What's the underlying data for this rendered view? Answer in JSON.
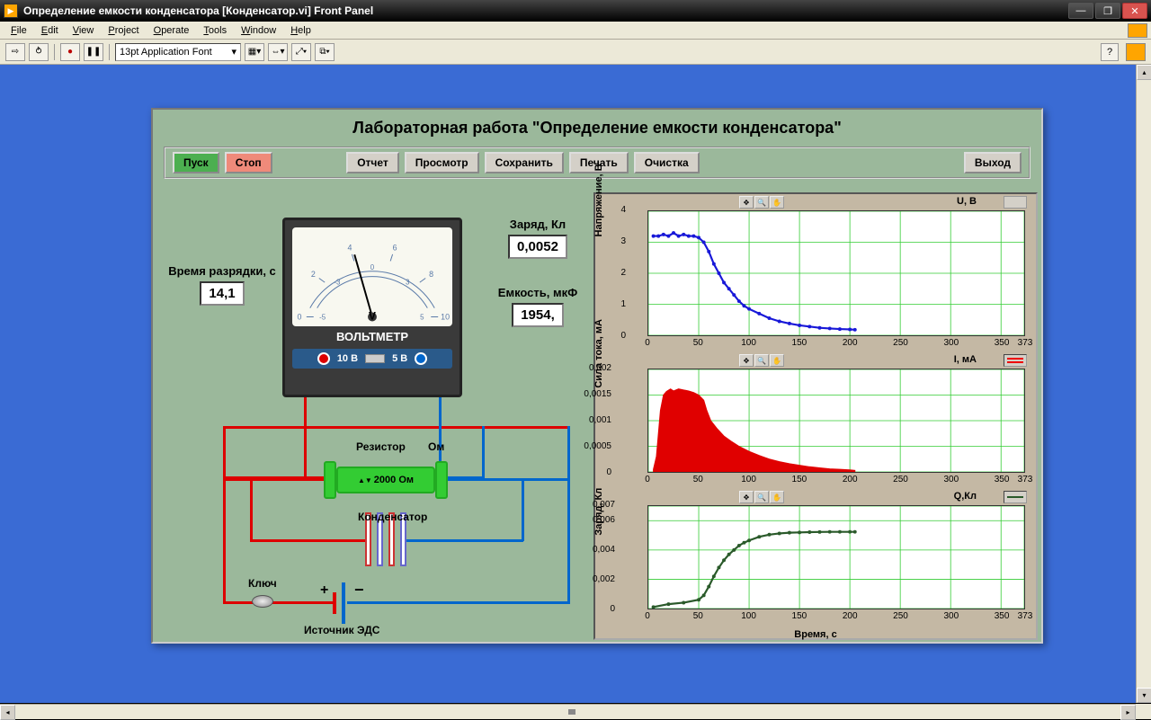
{
  "window": {
    "title": "Определение емкости конденсатора [Конденсатор.vi] Front Panel"
  },
  "menu": {
    "file": "File",
    "edit": "Edit",
    "view": "View",
    "project": "Project",
    "operate": "Operate",
    "tools": "Tools",
    "window": "Window",
    "help": "Help"
  },
  "toolbar": {
    "font": "13pt Application Font"
  },
  "panel": {
    "title": "Лабораторная работа \"Определение емкости конденсатора\"",
    "buttons": {
      "start": "Пуск",
      "stop": "Стоп",
      "report": "Отчет",
      "preview": "Просмотр",
      "save": "Сохранить",
      "print": "Печать",
      "clear": "Очистка",
      "exit": "Выход"
    }
  },
  "readouts": {
    "time_label": "Время разрядки, с",
    "time_value": "14,1",
    "charge_label": "Заряд, Кл",
    "charge_value": "0,0052",
    "cap_label": "Емкость, мкФ",
    "cap_value": "1954,"
  },
  "voltmeter": {
    "label": "ВОЛЬТМЕТР",
    "unit": "V",
    "range_10": "10 В",
    "range_5": "5 В",
    "scale_top": [
      "0",
      "2",
      "4",
      "6",
      "8",
      "10"
    ],
    "scale_bot": [
      "-5",
      "-3",
      "0",
      "3",
      "5"
    ]
  },
  "circuit": {
    "resistor_label": "Резистор",
    "resistor_unit": "Ом",
    "resistor_value": "2000 Ом",
    "capacitor_label": "Конденсатор",
    "switch_label": "Ключ",
    "source_label": "Источник ЭДС",
    "plus": "+",
    "minus": "−"
  },
  "charts": {
    "xlabel": "Время, с",
    "x_ticks": [
      0,
      50,
      100,
      150,
      200,
      250,
      300,
      350,
      373
    ],
    "voltage": {
      "title": "U, В",
      "ylabel": "Напряжение, В",
      "y_ticks": [
        0,
        1,
        2,
        3,
        4
      ],
      "ylim": [
        0,
        4
      ],
      "color": "#1818d8",
      "grid_color": "#3c3",
      "data": [
        [
          5,
          3.2
        ],
        [
          10,
          3.2
        ],
        [
          15,
          3.25
        ],
        [
          20,
          3.2
        ],
        [
          25,
          3.3
        ],
        [
          30,
          3.2
        ],
        [
          35,
          3.25
        ],
        [
          40,
          3.2
        ],
        [
          45,
          3.2
        ],
        [
          50,
          3.15
        ],
        [
          55,
          3.0
        ],
        [
          60,
          2.7
        ],
        [
          65,
          2.3
        ],
        [
          70,
          2.0
        ],
        [
          75,
          1.7
        ],
        [
          80,
          1.5
        ],
        [
          85,
          1.3
        ],
        [
          90,
          1.1
        ],
        [
          95,
          0.95
        ],
        [
          100,
          0.85
        ],
        [
          110,
          0.7
        ],
        [
          120,
          0.55
        ],
        [
          130,
          0.45
        ],
        [
          140,
          0.38
        ],
        [
          150,
          0.32
        ],
        [
          160,
          0.28
        ],
        [
          170,
          0.24
        ],
        [
          180,
          0.22
        ],
        [
          190,
          0.2
        ],
        [
          200,
          0.19
        ],
        [
          205,
          0.18
        ]
      ]
    },
    "current": {
      "title": "I, мА",
      "ylabel": "Сила тока, мА",
      "y_ticks": [
        0,
        0.0005,
        0.001,
        0.0015,
        0.002
      ],
      "ylim": [
        0,
        0.002
      ],
      "color": "#e00000",
      "grid_color": "#3c3",
      "data": [
        [
          5,
          5e-05
        ],
        [
          8,
          0.0003
        ],
        [
          12,
          0.0012
        ],
        [
          15,
          0.0015
        ],
        [
          18,
          0.00157
        ],
        [
          22,
          0.00162
        ],
        [
          25,
          0.00158
        ],
        [
          30,
          0.00162
        ],
        [
          35,
          0.0016
        ],
        [
          40,
          0.00158
        ],
        [
          45,
          0.00155
        ],
        [
          50,
          0.0015
        ],
        [
          55,
          0.0014
        ],
        [
          58,
          0.0012
        ],
        [
          62,
          0.001
        ],
        [
          68,
          0.00085
        ],
        [
          75,
          0.0007
        ],
        [
          82,
          0.0006
        ],
        [
          90,
          0.0005
        ],
        [
          100,
          0.0004
        ],
        [
          110,
          0.00032
        ],
        [
          120,
          0.00025
        ],
        [
          130,
          0.0002
        ],
        [
          140,
          0.00016
        ],
        [
          150,
          0.00013
        ],
        [
          160,
          0.0001
        ],
        [
          170,
          8e-05
        ],
        [
          180,
          6e-05
        ],
        [
          190,
          5e-05
        ],
        [
          200,
          4e-05
        ],
        [
          205,
          3e-05
        ]
      ]
    },
    "charge_chart": {
      "title": "Q,Кл",
      "ylabel": "Заряд, Кл",
      "y_ticks": [
        0,
        0.002,
        0.004,
        0.006,
        0.007
      ],
      "ylim": [
        0,
        0.007
      ],
      "color": "#2a5a2a",
      "grid_color": "#3c3",
      "data": [
        [
          5,
          0.0001
        ],
        [
          20,
          0.0003
        ],
        [
          35,
          0.0004
        ],
        [
          50,
          0.0006
        ],
        [
          55,
          0.0009
        ],
        [
          60,
          0.0015
        ],
        [
          65,
          0.0022
        ],
        [
          70,
          0.0028
        ],
        [
          75,
          0.0033
        ],
        [
          80,
          0.0037
        ],
        [
          85,
          0.004
        ],
        [
          90,
          0.0043
        ],
        [
          95,
          0.0045
        ],
        [
          100,
          0.00465
        ],
        [
          110,
          0.0049
        ],
        [
          120,
          0.00505
        ],
        [
          130,
          0.00513
        ],
        [
          140,
          0.00518
        ],
        [
          150,
          0.0052
        ],
        [
          160,
          0.00522
        ],
        [
          170,
          0.00523
        ],
        [
          180,
          0.00524
        ],
        [
          190,
          0.00524
        ],
        [
          200,
          0.00524
        ],
        [
          205,
          0.00524
        ]
      ]
    }
  },
  "colors": {
    "canvas_bg": "#3a6bd4",
    "panel_bg": "#9bb89b",
    "charts_bg": "#c4b8a4",
    "wire_red": "#d00000",
    "wire_blue": "#0066cc"
  }
}
